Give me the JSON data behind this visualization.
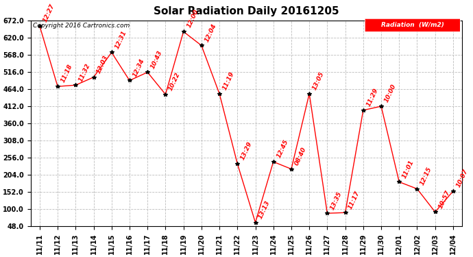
{
  "title": "Solar Radiation Daily 20161205",
  "copyright": "Copyright 2016 Cartronics.com",
  "legend_label": "Radiation  (W/m2)",
  "x_labels": [
    "11/11",
    "11/12",
    "11/13",
    "11/14",
    "11/15",
    "11/16",
    "11/17",
    "11/18",
    "11/19",
    "11/20",
    "11/21",
    "11/22",
    "11/23",
    "11/24",
    "11/25",
    "11/26",
    "11/27",
    "11/28",
    "11/29",
    "11/30",
    "12/01",
    "12/02",
    "12/03",
    "12/04"
  ],
  "y_values": [
    655,
    472,
    476,
    500,
    575,
    490,
    515,
    448,
    638,
    596,
    450,
    238,
    60,
    244,
    222,
    450,
    88,
    90,
    400,
    412,
    183,
    162,
    92,
    155
  ],
  "time_labels": [
    "12:27",
    "11:18",
    "11:32",
    "12:03",
    "12:31",
    "12:34",
    "10:43",
    "10:22",
    "12:00",
    "12:04",
    "11:19",
    "13:29",
    "13:13",
    "12:45",
    "08:40",
    "13:05",
    "13:35",
    "11:17",
    "11:29",
    "10:00",
    "11:01",
    "12:15",
    "10:57",
    "10:07"
  ],
  "y_ticks": [
    48.0,
    100.0,
    152.0,
    204.0,
    256.0,
    308.0,
    360.0,
    412.0,
    464.0,
    516.0,
    568.0,
    620.0,
    672.0
  ],
  "y_min": 48.0,
  "y_max": 672.0,
  "line_color": "red",
  "marker_color": "black",
  "label_color": "red",
  "bg_color": "#ffffff",
  "grid_color": "#bbbbbb",
  "title_fontsize": 11,
  "tick_fontsize": 7,
  "label_fontsize": 6.5,
  "copyright_fontsize": 6.5
}
